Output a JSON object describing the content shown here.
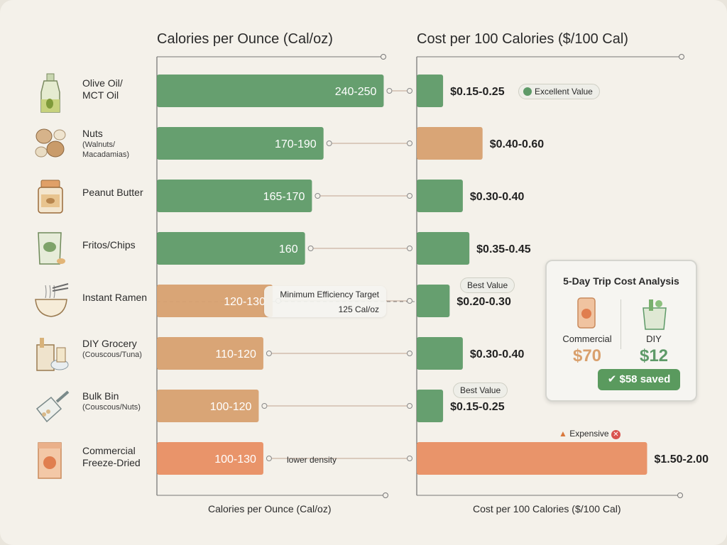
{
  "chart_data": [
    {
      "type": "bar",
      "title": "Calories per Ounce (Cal/oz)",
      "xlabel": "Calories per Ounce (Cal/oz)",
      "categories": [
        "Olive Oil/ MCT Oil",
        "Nuts (Walnuts/ Macadamias)",
        "Peanut Butter",
        "Fritos/Chips",
        "Instant Ramen",
        "DIY Grocery (Couscous/Tuna)",
        "Bulk Bin (Couscous/Nuts)",
        "Commercial Freeze-Dried"
      ],
      "values": [
        245,
        180,
        167.5,
        160,
        125,
        115,
        110,
        115
      ],
      "value_labels": [
        "240-250",
        "170-190",
        "165-170",
        "160",
        "120-130",
        "110-120",
        "100-120",
        "100-130"
      ],
      "colors": [
        "#5e9a68",
        "#5e9a68",
        "#5e9a68",
        "#5e9a68",
        "#d7a070",
        "#d7a070",
        "#d7a070",
        "#e88e63"
      ],
      "xlim": [
        0,
        260
      ],
      "annotations": {
        "target_value": 125,
        "target_l1": "Minimum Efficiency Target",
        "target_l2": "125 Cal/oz",
        "note": "lower density"
      }
    },
    {
      "type": "bar",
      "title": "Cost per 100 Calories ($/100 Cal)",
      "xlabel": "Cost per 100 Calories ($/100 Cal)",
      "categories": [
        "Olive Oil/ MCT Oil",
        "Nuts (Walnuts/ Macadamias)",
        "Peanut Butter",
        "Fritos/Chips",
        "Instant Ramen",
        "DIY Grocery (Couscous/Tuna)",
        "Bulk Bin (Couscous/Nuts)",
        "Commercial Freeze-Dried"
      ],
      "values": [
        0.2,
        0.5,
        0.35,
        0.4,
        0.25,
        0.35,
        0.2,
        1.75
      ],
      "value_labels": [
        "$0.15-0.25",
        "$0.40-0.60",
        "$0.30-0.40",
        "$0.35-0.45",
        "$0.20-0.30",
        "$0.30-0.40",
        "$0.15-0.25",
        "$1.50-2.00"
      ],
      "colors": [
        "#5e9a68",
        "#d7a070",
        "#5e9a68",
        "#5e9a68",
        "#5e9a68",
        "#5e9a68",
        "#5e9a68",
        "#e88e63"
      ],
      "xlim": [
        0,
        1.85
      ],
      "badges": {
        "excellent": "Excellent Value",
        "best": "Best Value",
        "expensive": "Expensive"
      }
    }
  ],
  "foods": [
    {
      "name": "Olive Oil/\nMCT Oil",
      "sub": "",
      "icon": "olive-oil-bottle-icon"
    },
    {
      "name": "Nuts",
      "sub": "(Walnuts/\nMacadamias)",
      "icon": "nuts-icon"
    },
    {
      "name": "Peanut Butter",
      "sub": "",
      "icon": "peanut-butter-jar-icon"
    },
    {
      "name": "Fritos/Chips",
      "sub": "",
      "icon": "chips-bag-icon"
    },
    {
      "name": "Instant Ramen",
      "sub": "",
      "icon": "ramen-bowl-icon"
    },
    {
      "name": "DIY Grocery",
      "sub": "(Couscous/Tuna)",
      "icon": "grocery-bag-icon"
    },
    {
      "name": "Bulk Bin",
      "sub": "(Couscous/Nuts)",
      "icon": "scoop-icon"
    },
    {
      "name": "Commercial\nFreeze-Dried",
      "sub": "",
      "icon": "freeze-dried-pouch-icon"
    }
  ],
  "trip": {
    "title": "5-Day Trip Cost Analysis",
    "commercial_label": "Commercial",
    "commercial_value": "$70",
    "diy_label": "DIY",
    "diy_value": "$12",
    "saved": "$58 saved"
  },
  "colors": {
    "green": "#5e9a68",
    "tan": "#d7a070",
    "orange": "#e88e63",
    "bg": "#f4f1ea"
  }
}
